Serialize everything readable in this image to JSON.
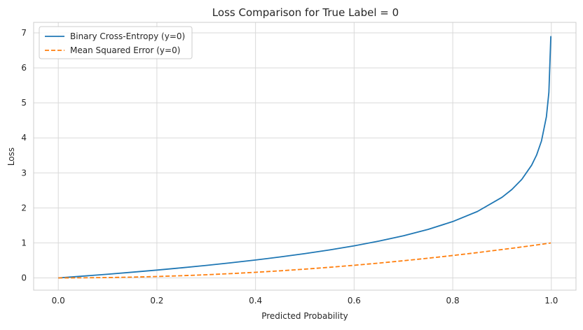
{
  "chart_data": {
    "type": "line",
    "title": "Loss Comparison for True Label = 0",
    "xlabel": "Predicted Probability",
    "ylabel": "Loss",
    "xlim": [
      -0.05,
      1.05
    ],
    "ylim": [
      -0.35,
      7.3
    ],
    "x_ticks": [
      0.0,
      0.2,
      0.4,
      0.6,
      0.8,
      1.0
    ],
    "x_tick_labels": [
      "0.0",
      "0.2",
      "0.4",
      "0.6",
      "0.8",
      "1.0"
    ],
    "y_ticks": [
      0,
      1,
      2,
      3,
      4,
      5,
      6,
      7
    ],
    "y_tick_labels": [
      "0",
      "1",
      "2",
      "3",
      "4",
      "5",
      "6",
      "7"
    ],
    "grid": true,
    "legend_position": "top-left",
    "x": [
      0.0,
      0.05,
      0.1,
      0.15,
      0.2,
      0.25,
      0.3,
      0.35,
      0.4,
      0.45,
      0.5,
      0.55,
      0.6,
      0.65,
      0.7,
      0.75,
      0.8,
      0.85,
      0.9,
      0.92,
      0.94,
      0.96,
      0.97,
      0.98,
      0.99,
      0.995,
      0.999
    ],
    "series": [
      {
        "name": "Binary Cross-Entropy (y=0)",
        "color": "#1f77b4",
        "style": "solid",
        "values": [
          0.0,
          0.051,
          0.105,
          0.163,
          0.223,
          0.288,
          0.357,
          0.431,
          0.511,
          0.598,
          0.693,
          0.799,
          0.916,
          1.05,
          1.204,
          1.386,
          1.609,
          1.897,
          2.303,
          2.526,
          2.813,
          3.219,
          3.507,
          3.912,
          4.605,
          5.298,
          6.908
        ]
      },
      {
        "name": "Mean Squared Error (y=0)",
        "color": "#ff7f0e",
        "style": "dashed",
        "values": [
          0.0,
          0.0025,
          0.01,
          0.0225,
          0.04,
          0.0625,
          0.09,
          0.1225,
          0.16,
          0.2025,
          0.25,
          0.3025,
          0.36,
          0.4225,
          0.49,
          0.5625,
          0.64,
          0.7225,
          0.81,
          0.8464,
          0.8836,
          0.9216,
          0.9409,
          0.9604,
          0.9801,
          0.99,
          0.998
        ]
      }
    ]
  }
}
